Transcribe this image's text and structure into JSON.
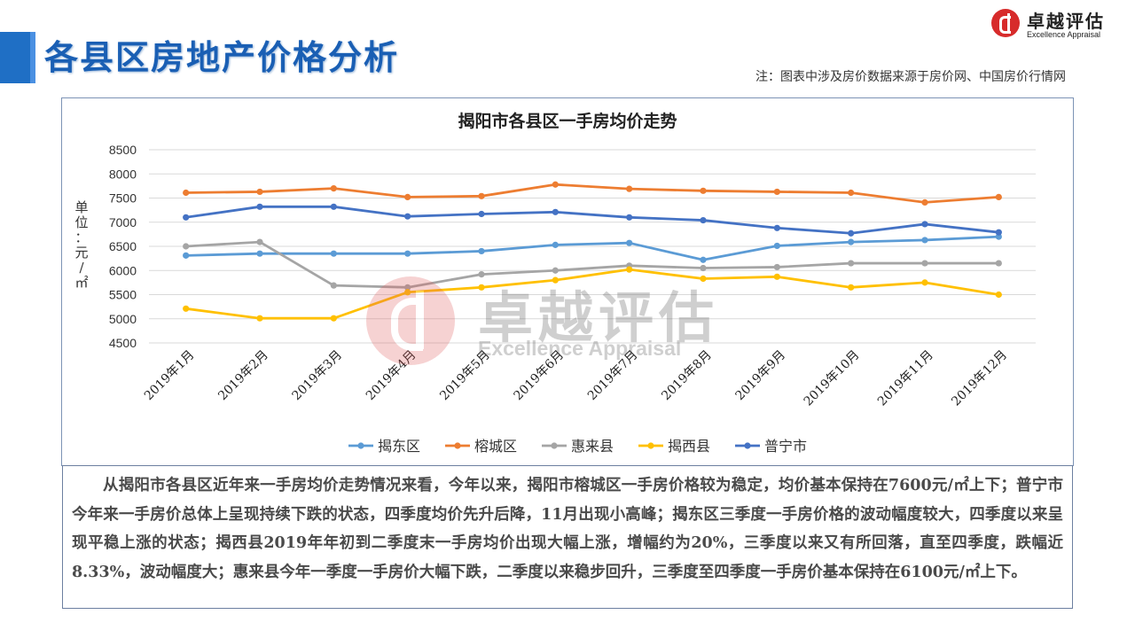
{
  "page": {
    "title": "各县区房地产价格分析",
    "note": "注：图表中涉及房价数据来源于房价网、中国房价行情网",
    "logo_cn": "卓越评估",
    "logo_en": "Excellence Appraisal",
    "watermark_cn": "卓越评估",
    "watermark_en": "Excellence Appraisal",
    "paragraph": "从揭阳市各县区近年来一手房均价走势情况来看，今年以来，揭阳市榕城区一手房价格较为稳定，均价基本保持在7600元/㎡上下；普宁市今年来一手房价总体上呈现持续下跌的状态，四季度均价先升后降，11月出现小高峰；揭东区三季度一手房价格的波动幅度较大，四季度以来呈现平稳上涨的状态；揭西县2019年年初到二季度末一手房均价出现大幅上涨，增幅约为20%，三季度以来又有所回落，直至四季度，跌幅近8.33%，波动幅度大；惠来县今年一季度一手房价大幅下跌，二季度以来稳步回升，三季度至四季度一手房价基本保持在6100元/㎡上下。"
  },
  "chart_data": {
    "type": "line",
    "title": "揭阳市各县区一手房均价走势",
    "ylabel": "单位：元/㎡",
    "xlabel": "",
    "ylim": [
      4500,
      8500
    ],
    "yticks": [
      "8500",
      "8000",
      "7500",
      "7000",
      "6500",
      "6000",
      "5500",
      "5000",
      "4500"
    ],
    "grid": true,
    "legend_position": "bottom",
    "categories": [
      "2019年1月",
      "2019年2月",
      "2019年3月",
      "2019年4月",
      "2019年5月",
      "2019年6月",
      "2019年7月",
      "2019年8月",
      "2019年9月",
      "2019年10月",
      "2019年11月",
      "2019年12月"
    ],
    "series": [
      {
        "name": "揭东区",
        "color": "#5b9bd5",
        "values": [
          6310,
          6350,
          6350,
          6350,
          6400,
          6530,
          6570,
          6220,
          6510,
          6590,
          6630,
          6700
        ]
      },
      {
        "name": "榕城区",
        "color": "#ed7d31",
        "values": [
          7610,
          7630,
          7700,
          7520,
          7540,
          7780,
          7690,
          7650,
          7630,
          7610,
          7410,
          7520
        ]
      },
      {
        "name": "惠来县",
        "color": "#a5a5a5",
        "values": [
          6500,
          6590,
          5690,
          5650,
          5920,
          6000,
          6100,
          6050,
          6070,
          6150,
          6150,
          6150
        ]
      },
      {
        "name": "揭西县",
        "color": "#ffc000",
        "values": [
          5210,
          5010,
          5010,
          5550,
          5650,
          5800,
          6020,
          5830,
          5870,
          5650,
          5750,
          5500
        ]
      },
      {
        "name": "普宁市",
        "color": "#4472c4",
        "values": [
          7100,
          7320,
          7320,
          7120,
          7170,
          7210,
          7100,
          7040,
          6880,
          6770,
          6960,
          6790
        ]
      }
    ]
  }
}
